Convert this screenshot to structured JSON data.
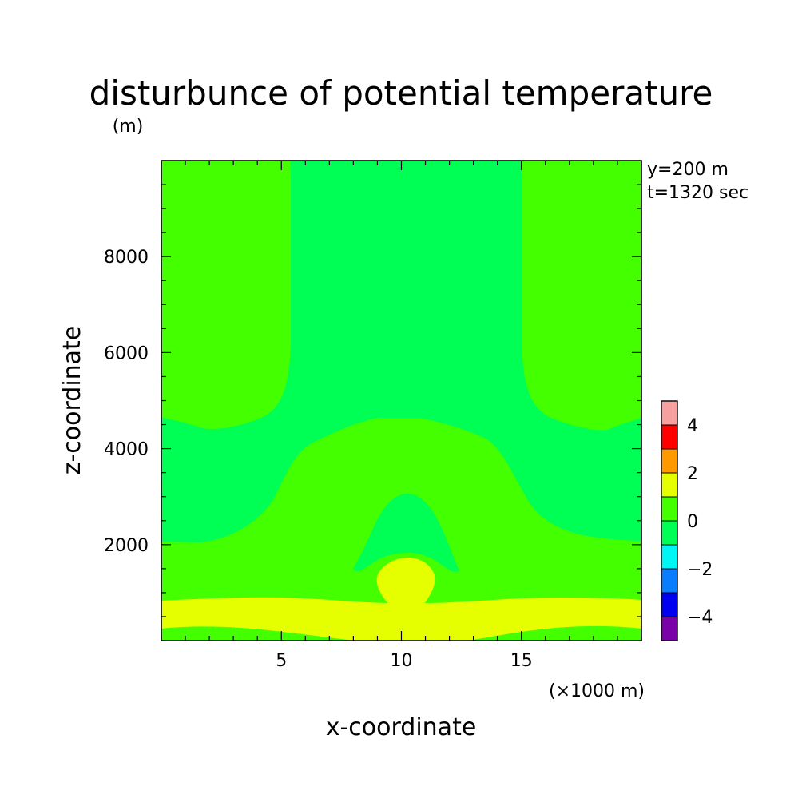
{
  "chart_data": {
    "type": "heatmap",
    "title": "disturbunce of potential temperature",
    "ylabel": "z-coordinate",
    "yunit": "(m)",
    "xlabel": "x-coordinate",
    "xunit": "(×1000 m)",
    "annotations": [
      "y=200 m",
      "t=1320 sec"
    ],
    "xlim": [
      0,
      20
    ],
    "ylim": [
      0,
      10000
    ],
    "xticks": [
      5,
      10,
      15
    ],
    "xtick_labels": [
      "5",
      "10",
      "15"
    ],
    "yticks": [
      2000,
      4000,
      6000,
      8000
    ],
    "ytick_labels": [
      "2000",
      "4000",
      "6000",
      "8000"
    ],
    "colorbar": {
      "levels": [
        -5,
        -4,
        -3,
        -2,
        -1,
        0,
        1,
        2,
        3,
        4,
        5
      ],
      "tick_values": [
        -4,
        -2,
        0,
        2,
        4
      ],
      "tick_labels": [
        "−4",
        "−2",
        "0",
        "2",
        "4"
      ],
      "colors": [
        "#7a00a8",
        "#0000f0",
        "#0a7dff",
        "#00f5f5",
        "#00ff55",
        "#44ff00",
        "#e6ff00",
        "#ff9900",
        "#ff0000",
        "#f7a0a0"
      ]
    },
    "regions": [
      {
        "name": "upper-left-band",
        "range": "0 to 1"
      },
      {
        "name": "upper-right-band",
        "range": "0 to 1"
      },
      {
        "name": "central-column",
        "range": "-1 to 0"
      },
      {
        "name": "middle-dome",
        "range": "0 to 1"
      },
      {
        "name": "inner-arch",
        "range": "-1 to 0"
      },
      {
        "name": "low-level-warm-layer",
        "range": "1 to 2"
      },
      {
        "name": "surface-layer",
        "range": "0 to 1"
      }
    ]
  }
}
